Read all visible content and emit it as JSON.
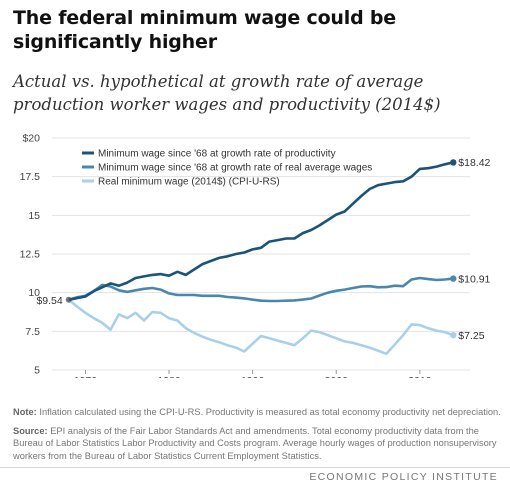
{
  "title": "The federal minimum wage could be significantly higher",
  "subtitle": "Actual vs. hypothetical at growth rate of average production worker wages and productivity (2014$)",
  "note_label": "Note:",
  "note_text": "Inflation calculated using the CPI-U-RS. Productivity is measured as total economy productivity net depreciation.",
  "source_label": "Source:",
  "source_text": "EPI analysis of the Fair Labor Standards Act and amendments. Total economy productivity data from the Bureau of Labor Statistics Labor Productivity and Costs program. Average hourly wages of production nonsupervisory workers from the Bureau of Labor Statistics Current Employment Statistics.",
  "footer": "ECONOMIC POLICY INSTITUTE",
  "chart_data": {
    "type": "line",
    "xlim": [
      1966,
      2016
    ],
    "ylim": [
      5,
      20
    ],
    "x_ticks": [
      1970,
      1980,
      1990,
      2000,
      2010
    ],
    "y_ticks": [
      5,
      7.5,
      10,
      12.5,
      15,
      17.5,
      20
    ],
    "y_tick_labels": [
      "5",
      "7.5",
      "10",
      "12.5",
      "15",
      "17.5",
      "$20"
    ],
    "grid": true,
    "legend": "top-left",
    "series": [
      {
        "name": "Minimum wage since '68 at growth rate of productivity",
        "color": "#1b5479",
        "end_label": "$18.42",
        "start_label": "",
        "x": [
          1968,
          1969,
          1970,
          1971,
          1972,
          1973,
          1974,
          1975,
          1976,
          1977,
          1978,
          1979,
          1980,
          1981,
          1982,
          1983,
          1984,
          1985,
          1986,
          1987,
          1988,
          1989,
          1990,
          1991,
          1992,
          1993,
          1994,
          1995,
          1996,
          1997,
          1998,
          1999,
          2000,
          2001,
          2002,
          2003,
          2004,
          2005,
          2006,
          2007,
          2008,
          2009,
          2010,
          2011,
          2012,
          2013,
          2014
        ],
        "y": [
          9.54,
          9.65,
          9.75,
          10.1,
          10.35,
          10.6,
          10.45,
          10.65,
          10.95,
          11.05,
          11.15,
          11.2,
          11.1,
          11.35,
          11.15,
          11.5,
          11.85,
          12.05,
          12.25,
          12.35,
          12.5,
          12.6,
          12.8,
          12.9,
          13.3,
          13.4,
          13.5,
          13.5,
          13.85,
          14.05,
          14.35,
          14.7,
          15.05,
          15.25,
          15.75,
          16.25,
          16.7,
          16.95,
          17.05,
          17.15,
          17.2,
          17.5,
          18.0,
          18.05,
          18.15,
          18.3,
          18.42
        ]
      },
      {
        "name": "Minimum wage since '68 at growth rate of real average wages",
        "color": "#4b87ad",
        "end_label": "$10.91",
        "start_label": "",
        "x": [
          1968,
          1969,
          1970,
          1971,
          1972,
          1973,
          1974,
          1975,
          1976,
          1977,
          1978,
          1979,
          1980,
          1981,
          1982,
          1983,
          1984,
          1985,
          1986,
          1987,
          1988,
          1989,
          1990,
          1991,
          1992,
          1993,
          1994,
          1995,
          1996,
          1997,
          1998,
          1999,
          2000,
          2001,
          2002,
          2003,
          2004,
          2005,
          2006,
          2007,
          2008,
          2009,
          2010,
          2011,
          2012,
          2013,
          2014
        ],
        "y": [
          9.54,
          9.7,
          9.8,
          10.1,
          10.5,
          10.4,
          10.15,
          10.05,
          10.15,
          10.25,
          10.3,
          10.2,
          9.95,
          9.85,
          9.85,
          9.85,
          9.8,
          9.8,
          9.8,
          9.72,
          9.68,
          9.63,
          9.55,
          9.48,
          9.46,
          9.46,
          9.48,
          9.5,
          9.55,
          9.62,
          9.82,
          10.0,
          10.12,
          10.2,
          10.3,
          10.4,
          10.42,
          10.35,
          10.36,
          10.45,
          10.42,
          10.85,
          10.95,
          10.88,
          10.82,
          10.85,
          10.91
        ]
      },
      {
        "name": "Real minimum wage (2014$) (CPI-U-RS)",
        "color": "#a9d0ea",
        "end_label": "$7.25",
        "start_label": "$9.54",
        "x": [
          1968,
          1969,
          1970,
          1971,
          1972,
          1973,
          1974,
          1975,
          1976,
          1977,
          1978,
          1979,
          1980,
          1981,
          1982,
          1983,
          1984,
          1985,
          1986,
          1987,
          1988,
          1989,
          1990,
          1991,
          1992,
          1993,
          1994,
          1995,
          1996,
          1997,
          1998,
          1999,
          2000,
          2001,
          2002,
          2003,
          2004,
          2005,
          2006,
          2007,
          2008,
          2009,
          2010,
          2011,
          2012,
          2013,
          2014
        ],
        "y": [
          9.54,
          9.1,
          8.7,
          8.35,
          8.05,
          7.6,
          8.6,
          8.35,
          8.7,
          8.2,
          8.75,
          8.7,
          8.35,
          8.2,
          7.7,
          7.4,
          7.15,
          6.95,
          6.8,
          6.6,
          6.45,
          6.2,
          6.7,
          7.2,
          7.05,
          6.9,
          6.75,
          6.6,
          7.05,
          7.55,
          7.45,
          7.25,
          7.05,
          6.85,
          6.75,
          6.6,
          6.45,
          6.25,
          6.05,
          6.65,
          7.25,
          7.95,
          7.9,
          7.7,
          7.55,
          7.45,
          7.25
        ]
      }
    ]
  }
}
